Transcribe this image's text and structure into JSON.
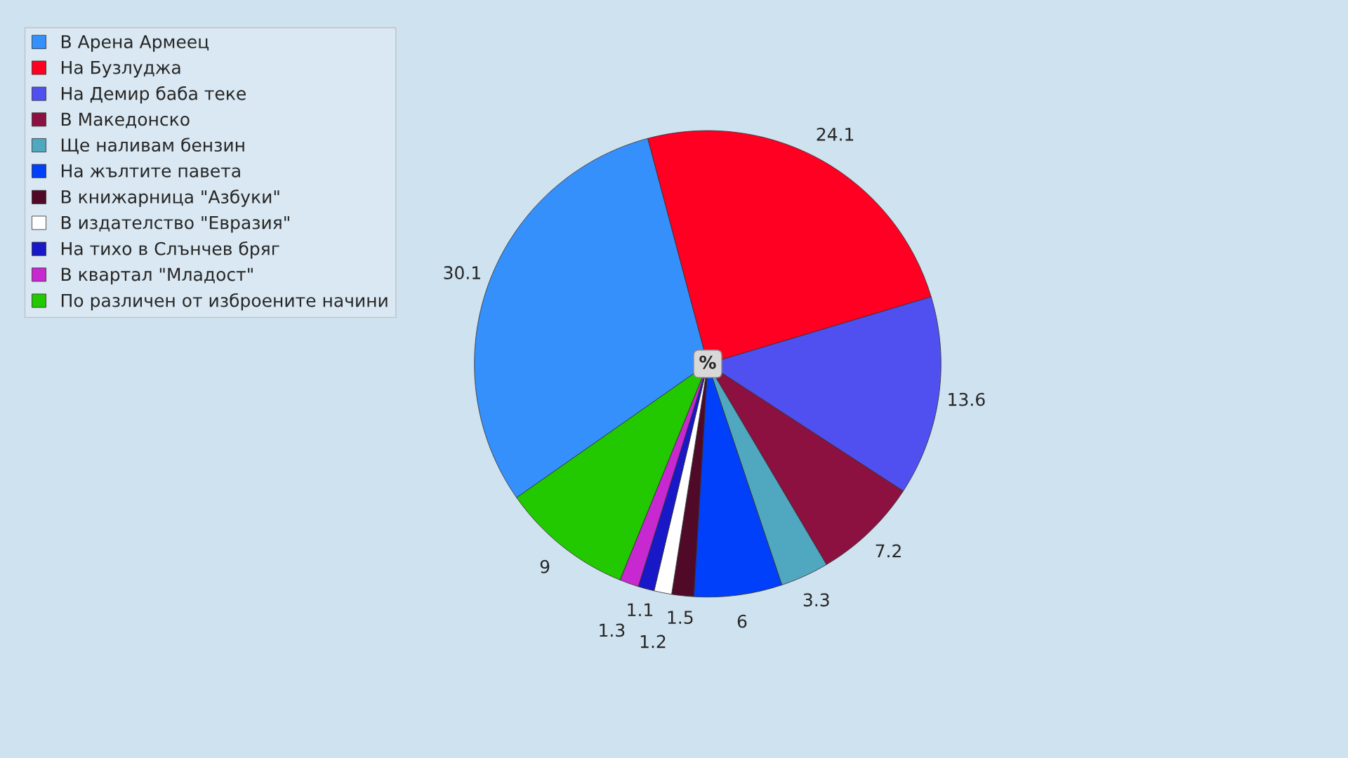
{
  "chart_data": {
    "type": "pie",
    "categories": [
      "В Арена Армеец",
      "На Бузлуджа",
      "На Демир баба теке",
      "В Македонско",
      "Ще наливам бензин",
      "На жълтите павета",
      "В книжарница \"Азбуки\"",
      "В издателство \"Евразия\"",
      "На тихо в Слънчев бряг",
      "В квартал \"Младост\"",
      "По различен от изброените начини"
    ],
    "values": [
      30.1,
      24.1,
      13.6,
      7.2,
      3.3,
      6,
      1.5,
      1.2,
      1.1,
      1.3,
      9
    ],
    "colors": [
      "#3590fc",
      "#ff0022",
      "#5050f0",
      "#8c1040",
      "#50a8c0",
      "#0040fa",
      "#500a28",
      "#ffffff",
      "#1818c8",
      "#c828d0",
      "#22c800"
    ],
    "data_labels": true,
    "legend": "top left",
    "annotations": [
      "%"
    ]
  }
}
